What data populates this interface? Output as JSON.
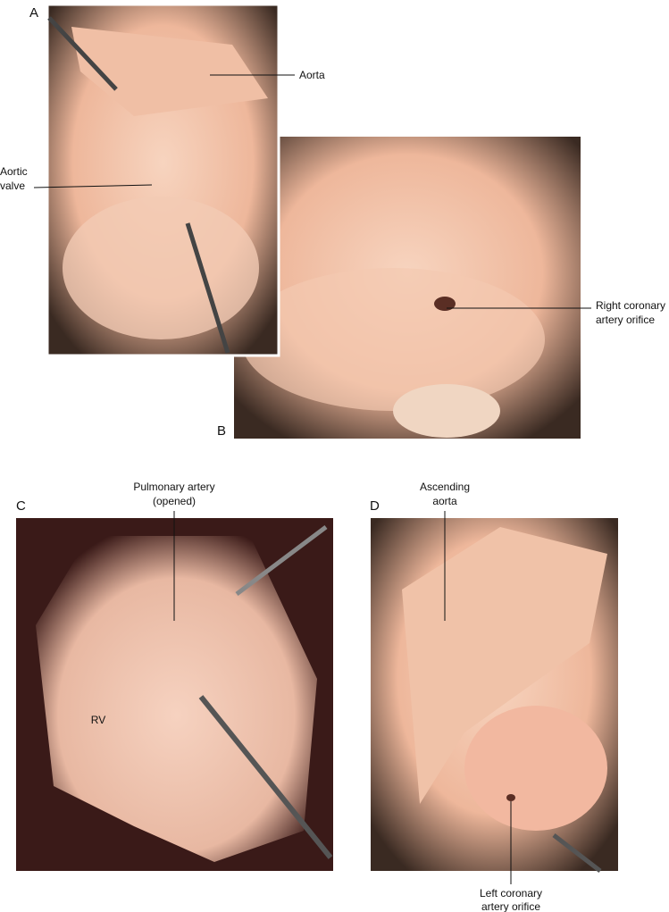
{
  "panels": [
    {
      "letter": "A",
      "labels": [
        {
          "lines": [
            "Aorta"
          ]
        },
        {
          "lines": [
            "Aortic",
            "valve"
          ]
        }
      ]
    },
    {
      "letter": "B",
      "labels": [
        {
          "lines": [
            "Right coronary",
            "artery orifice"
          ]
        }
      ]
    },
    {
      "letter": "C",
      "labels": [
        {
          "lines": [
            "Pulmonary artery",
            "(opened)"
          ]
        },
        {
          "lines": [
            "RV"
          ]
        }
      ]
    },
    {
      "letter": "D",
      "labels": [
        {
          "lines": [
            "Ascending",
            "aorta"
          ]
        },
        {
          "lines": [
            "Left coronary",
            "artery orifice"
          ]
        }
      ]
    }
  ]
}
